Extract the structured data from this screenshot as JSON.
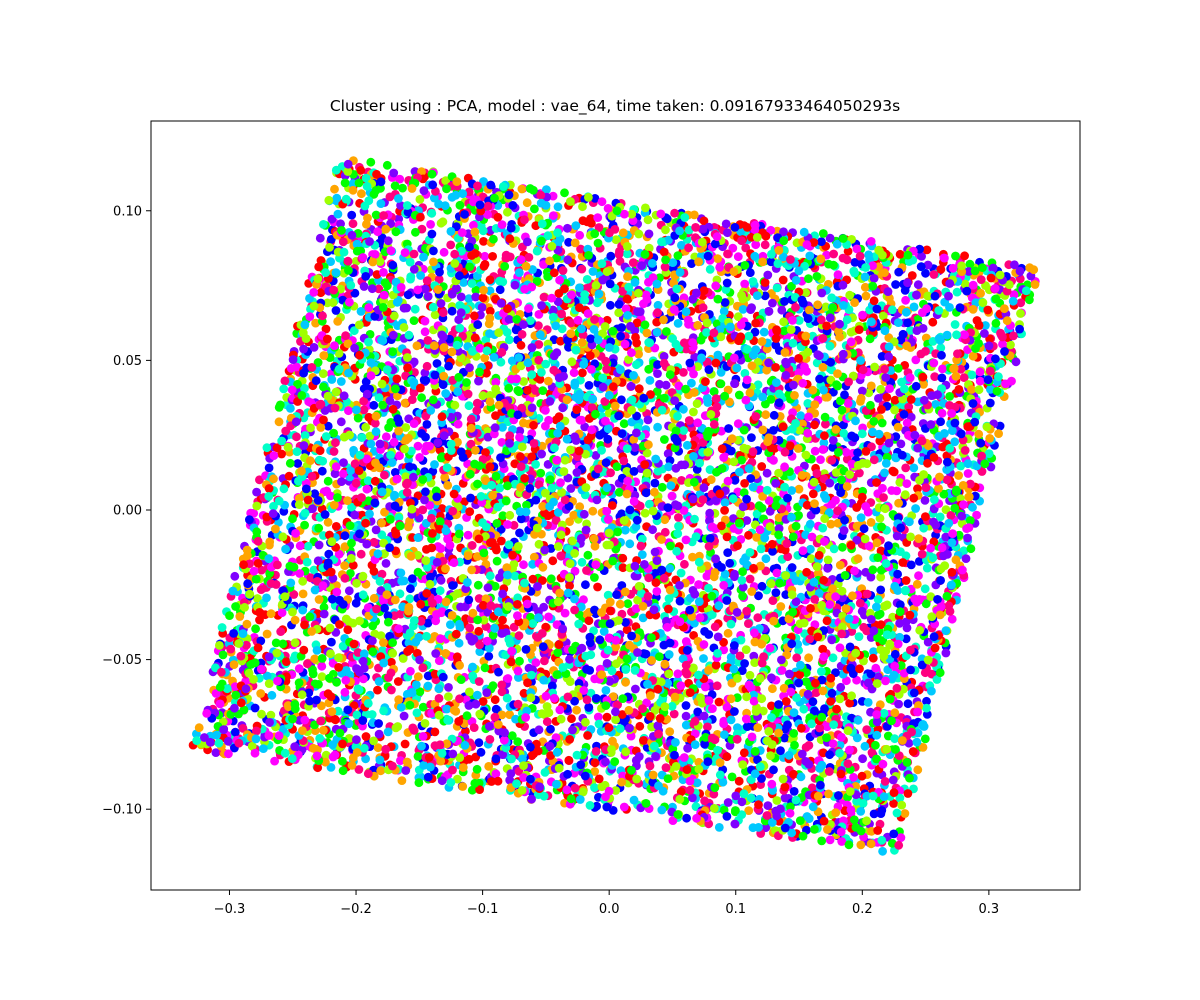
{
  "chart_data": {
    "type": "scatter",
    "title": "Cluster using : PCA, model : vae_64, time taken: 0.09167933464050293s",
    "xlabel": "",
    "ylabel": "",
    "xlim": [
      -0.362,
      0.372
    ],
    "ylim": [
      -0.127,
      0.13
    ],
    "xticks": [
      -0.3,
      -0.2,
      -0.1,
      0.0,
      0.1,
      0.2,
      0.3
    ],
    "xtick_labels": [
      "−0.3",
      "−0.2",
      "−0.1",
      "0.0",
      "0.1",
      "0.2",
      "0.3"
    ],
    "yticks": [
      -0.1,
      -0.05,
      0.0,
      0.05,
      0.1
    ],
    "ytick_labels": [
      "−0.10",
      "−0.05",
      "0.00",
      "0.05",
      "0.10"
    ],
    "grid": false,
    "legend": "none",
    "point_region": {
      "corners": [
        [
          -0.213,
          0.118
        ],
        [
          0.34,
          0.081
        ],
        [
          0.228,
          -0.115
        ],
        [
          -0.33,
          -0.08
        ]
      ],
      "approx_point_count": 9000
    },
    "palette": [
      "#ff0000",
      "#ff00ff",
      "#8000ff",
      "#0000ff",
      "#00c8ff",
      "#00ffc8",
      "#00ff00",
      "#a0ff00",
      "#ffa500",
      "#ff0080"
    ]
  }
}
